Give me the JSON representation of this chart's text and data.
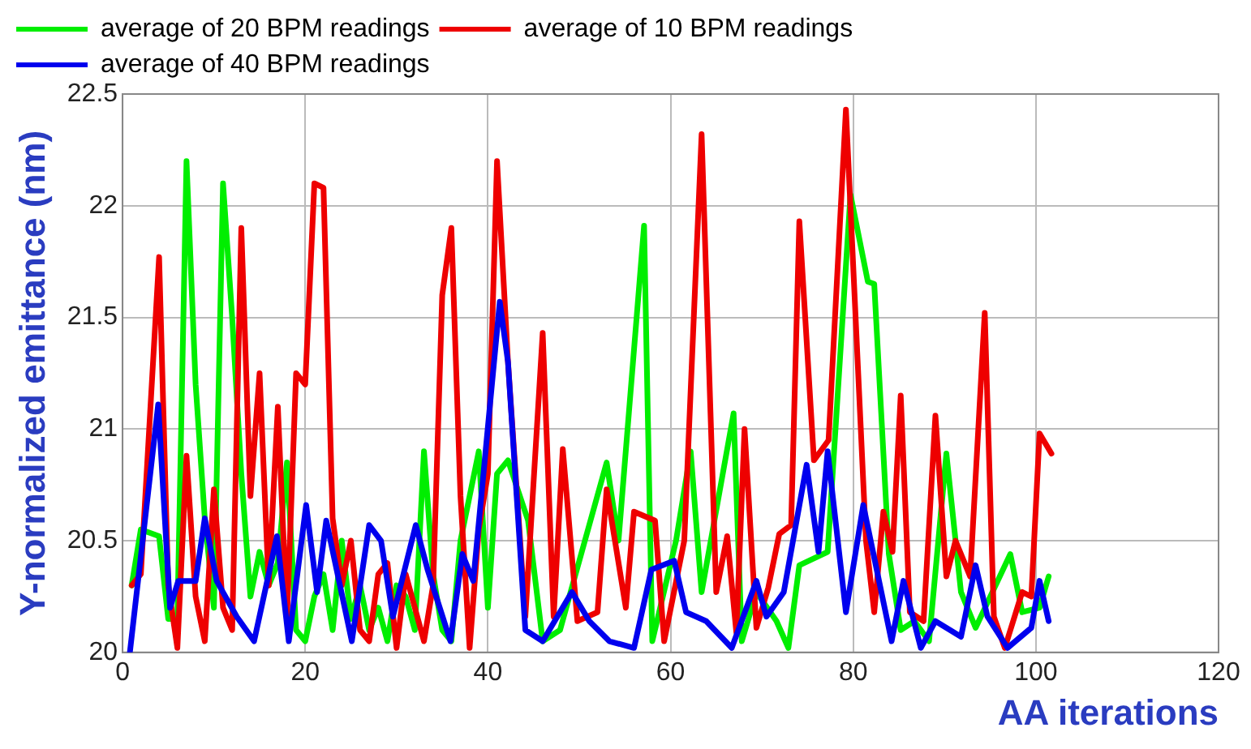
{
  "chart_data": {
    "type": "line",
    "xlabel": "AA iterations",
    "ylabel": "Y-normalized emittance (nm)",
    "xlim": [
      0,
      120
    ],
    "xticks": [
      0,
      20,
      40,
      60,
      80,
      100,
      120
    ],
    "ylim": [
      20,
      22.5
    ],
    "yticks": [
      20,
      20.5,
      21,
      21.5,
      22,
      22.5
    ],
    "grid": true,
    "legend": "top left",
    "marker": "none",
    "line_style": "solid",
    "series": [
      {
        "name": "average of 20 BPM readings",
        "color": "#00ee00",
        "x": [
          1,
          2,
          4,
          5,
          6,
          7,
          8,
          9,
          10,
          11,
          12,
          13,
          14,
          15,
          16,
          17,
          18,
          19,
          20,
          21,
          22,
          23,
          24,
          25,
          26,
          27,
          28,
          29,
          30,
          31,
          32,
          33,
          34,
          35,
          36,
          37,
          38,
          39,
          40,
          41,
          42.2,
          44.4,
          46,
          47.9,
          53,
          54.3,
          57.1,
          58,
          60.6,
          62.2,
          63.4,
          66.9,
          67.8,
          69.4,
          71.6,
          72.9,
          74.1,
          77.2,
          79.7,
          81.6,
          82.3,
          83.9,
          85.2,
          86.7,
          88.3,
          90.2,
          91.8,
          93.4,
          97.2,
          98.5,
          100.4,
          101.4
        ],
        "values": [
          20.3,
          20.55,
          20.52,
          20.15,
          20.15,
          22.2,
          21.2,
          20.6,
          20.2,
          22.1,
          21.5,
          20.8,
          20.25,
          20.45,
          20.3,
          20.4,
          20.85,
          20.1,
          20.05,
          20.25,
          20.35,
          20.1,
          20.5,
          20.15,
          20.3,
          20.1,
          20.2,
          20.05,
          20.3,
          20.25,
          20.1,
          20.9,
          20.35,
          20.1,
          20.05,
          20.5,
          20.7,
          20.9,
          20.2,
          20.8,
          20.86,
          20.59,
          20.05,
          20.1,
          20.85,
          20.5,
          21.91,
          20.05,
          20.5,
          20.9,
          20.27,
          21.07,
          20.05,
          20.27,
          20.14,
          20.02,
          20.39,
          20.45,
          22.05,
          21.66,
          21.65,
          20.44,
          20.1,
          20.14,
          20.05,
          20.89,
          20.27,
          20.11,
          20.44,
          20.18,
          20.2,
          20.34
        ]
      },
      {
        "name": "average of 10 BPM readings",
        "color": "#ee0000",
        "x": [
          1,
          2,
          4,
          5,
          6,
          7,
          8,
          9,
          10,
          11,
          12,
          13,
          14,
          15,
          16,
          17,
          18,
          19,
          20,
          21,
          22,
          23,
          24,
          25,
          26,
          27,
          28,
          29,
          30,
          31,
          32,
          33,
          34,
          35,
          36,
          37,
          38,
          39,
          40,
          41,
          42.2,
          44.1,
          46,
          47.2,
          48.2,
          49.8,
          52,
          53,
          55.1,
          56,
          58.3,
          59.3,
          61.5,
          63.4,
          65,
          66.2,
          67.2,
          68.1,
          69.4,
          70.7,
          71.9,
          73.2,
          74.1,
          75.7,
          77.3,
          79.2,
          81.4,
          82.3,
          83.3,
          84.3,
          85.2,
          86.2,
          87.7,
          89,
          90.2,
          91.2,
          92.8,
          94.4,
          95.4,
          96.6,
          98.5,
          99.5,
          100.4,
          101.7
        ],
        "values": [
          20.3,
          20.35,
          21.77,
          20.3,
          20.02,
          20.88,
          20.25,
          20.05,
          20.73,
          20.2,
          20.1,
          21.9,
          20.7,
          21.25,
          20.3,
          21.1,
          20.15,
          21.25,
          21.2,
          22.1,
          22.08,
          20.6,
          20.3,
          20.5,
          20.1,
          20.05,
          20.35,
          20.4,
          20.02,
          20.35,
          20.2,
          20.05,
          20.3,
          21.6,
          21.9,
          20.7,
          20.02,
          20.55,
          20.8,
          22.2,
          21.3,
          20.16,
          21.43,
          20.16,
          20.91,
          20.14,
          20.18,
          20.73,
          20.2,
          20.63,
          20.59,
          20.05,
          20.5,
          22.32,
          20.27,
          20.52,
          20.09,
          21.0,
          20.11,
          20.29,
          20.53,
          20.57,
          21.93,
          20.86,
          20.95,
          22.43,
          20.5,
          20.18,
          20.63,
          20.45,
          21.15,
          20.18,
          20.14,
          21.06,
          20.34,
          20.5,
          20.34,
          21.52,
          20.16,
          20.02,
          20.27,
          20.25,
          20.98,
          20.89
        ]
      },
      {
        "name": "average of 40 BPM readings",
        "color": "#0000ee",
        "x": [
          0.8,
          3.9,
          5.2,
          6.1,
          8,
          9,
          10.3,
          12.5,
          14.4,
          16.9,
          18.2,
          20.1,
          21.3,
          22.3,
          25.1,
          27,
          28.3,
          29.6,
          32.1,
          33.4,
          35.9,
          37.2,
          38.4,
          41.3,
          42.2,
          44.1,
          46,
          49.2,
          51.1,
          53.3,
          56,
          57.9,
          60.4,
          61.7,
          63.9,
          66.7,
          69.4,
          70.5,
          72.4,
          74.9,
          76.2,
          77.2,
          79.2,
          81.1,
          84.2,
          85.5,
          87.4,
          89,
          91.8,
          93.4,
          94.7,
          96.9,
          99.5,
          100.4,
          101.4
        ],
        "values": [
          20,
          21.11,
          20.2,
          20.32,
          20.32,
          20.6,
          20.32,
          20.16,
          20.05,
          20.52,
          20.05,
          20.66,
          20.27,
          20.59,
          20.05,
          20.57,
          20.5,
          20.16,
          20.57,
          20.37,
          20.05,
          20.44,
          20.32,
          21.57,
          21.3,
          20.1,
          20.05,
          20.27,
          20.14,
          20.05,
          20.02,
          20.37,
          20.41,
          20.18,
          20.14,
          20.02,
          20.32,
          20.16,
          20.27,
          20.84,
          20.45,
          20.9,
          20.18,
          20.66,
          20.05,
          20.32,
          20.02,
          20.14,
          20.07,
          20.39,
          20.16,
          20.02,
          20.11,
          20.32,
          20.14
        ]
      }
    ]
  }
}
